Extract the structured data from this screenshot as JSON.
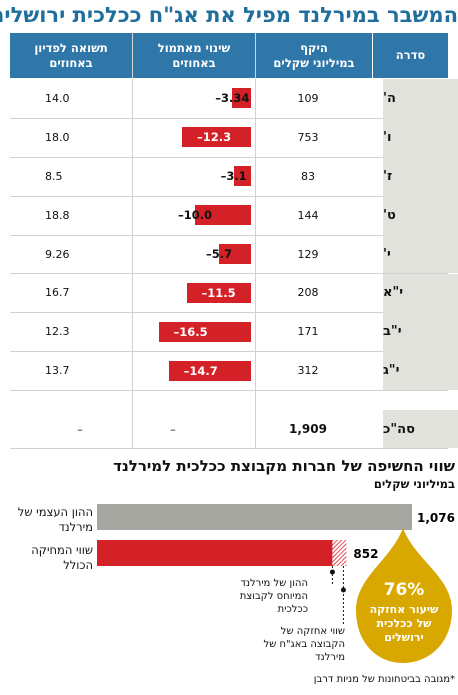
{
  "title": "המשבר במירלנד מפיל את אג\"ח ככלכית ירושלים",
  "table": {
    "headers": {
      "category": "סדרה",
      "scope": [
        "היקף",
        "במיליוני שקלים"
      ],
      "change": [
        "שינוי מאתמול",
        "באחוזים"
      ],
      "yield": [
        "תשואה לפדיון",
        "באחוזים"
      ]
    },
    "total": {
      "label": "סה\"כ",
      "scope": "1,909",
      "change": "–",
      "yield": "–"
    }
  },
  "chart_data": [
    {
      "type": "bar",
      "categories": [
        "ה'",
        "ו'",
        "ז'",
        "ט'",
        "י'",
        "י\"א",
        "י\"ב",
        "י\"ג"
      ],
      "scope": [
        109,
        753,
        83,
        144,
        129,
        208,
        171,
        312
      ],
      "values": [
        -3.34,
        -12.3,
        -3.1,
        -10.0,
        -5.7,
        -11.5,
        -16.5,
        -14.7
      ],
      "value_labels": [
        "3.34–",
        "12.3–",
        "3.1–",
        "10.0–",
        "5.7–",
        "11.5–",
        "16.5–",
        "14.7–"
      ],
      "yield": [
        "14.0",
        "18.0",
        "8.5",
        "18.8",
        "9.26",
        "16.7",
        "12.3",
        "13.7"
      ],
      "colors": {
        "bar": "#d42027",
        "header": "#2f77a8",
        "category_bg": "#e2e2dc"
      }
    },
    {
      "type": "bar",
      "title": "שווי החשיפה של חברות מקבוצת ככלכית למירלנד",
      "ylabel": "במיליוני שקלים",
      "categories": [
        "ההון העצמי של מירלנד",
        "שווי המחיקה הכולל"
      ],
      "values": [
        1076,
        852
      ],
      "value_labels": [
        "1,076",
        "852"
      ],
      "colors": {
        "equity": "#a6a6a0",
        "writeoff": "#d42027"
      },
      "annotations": {
        "equity_share": "ההון של מירלנד המיוחס לקבוצת ככלכית",
        "holding_value": "שווי אחזקה של הקבוצה באג\"ח של מירלנד",
        "badge_value": "76%",
        "badge_text": "שיעור אחזקה של ככלכית ירושלים"
      }
    }
  ],
  "footnote": "*מגובה בביטחונות של מניות דרבן"
}
